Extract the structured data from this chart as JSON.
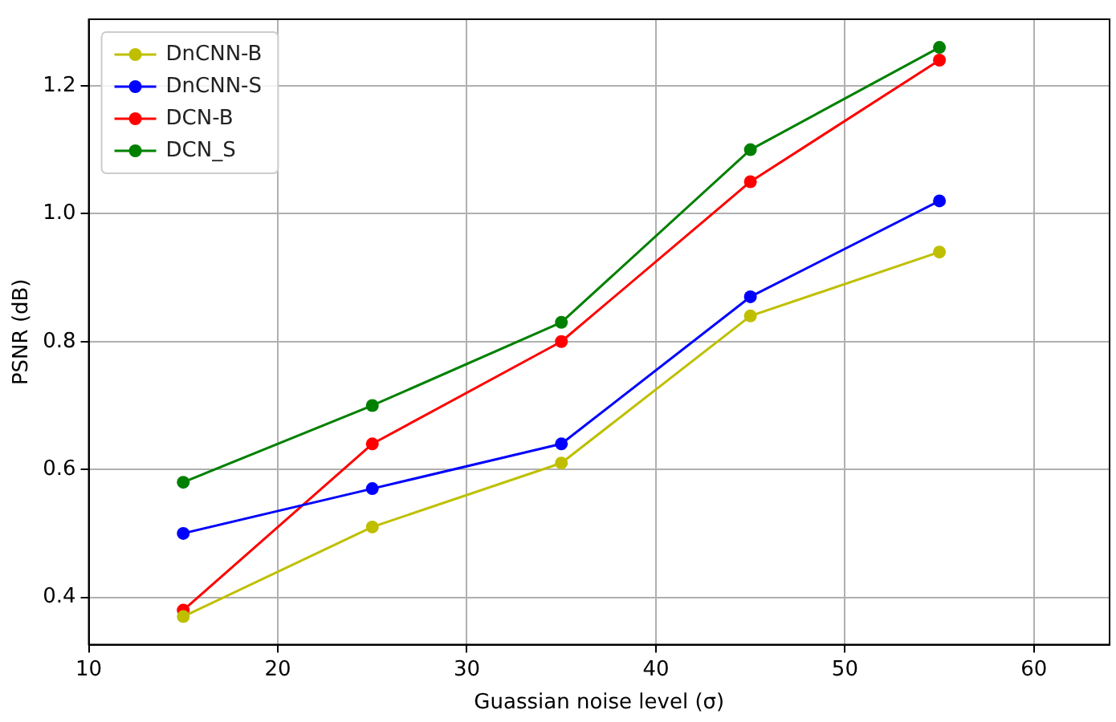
{
  "chart_data": {
    "type": "line",
    "xlabel": "Guassian noise level (σ)",
    "ylabel": "PSNR (dB)",
    "x": [
      15,
      25,
      35,
      45,
      55
    ],
    "series": [
      {
        "name": "DnCNN-B",
        "color": "#bfbf00",
        "values": [
          0.37,
          0.51,
          0.61,
          0.84,
          0.94
        ]
      },
      {
        "name": "DnCNN-S",
        "color": "#0000ff",
        "values": [
          0.5,
          0.57,
          0.64,
          0.87,
          1.02
        ]
      },
      {
        "name": "DCN-B",
        "color": "#ff0000",
        "values": [
          0.38,
          0.64,
          0.8,
          1.05,
          1.24
        ]
      },
      {
        "name": "DCN_S",
        "color": "#008000",
        "values": [
          0.58,
          0.7,
          0.83,
          1.1,
          1.26
        ]
      }
    ],
    "xlim": [
      10,
      64
    ],
    "xticks": [
      10,
      20,
      30,
      40,
      50,
      60
    ],
    "ylim": [
      0.326,
      1.304
    ],
    "yticks": [
      0.4,
      0.6,
      0.8,
      {
        "value": 1,
        "label": "1.0"
      },
      1.2
    ],
    "grid": true,
    "legend": "top left",
    "marker": "circle",
    "line_style": "solid"
  }
}
